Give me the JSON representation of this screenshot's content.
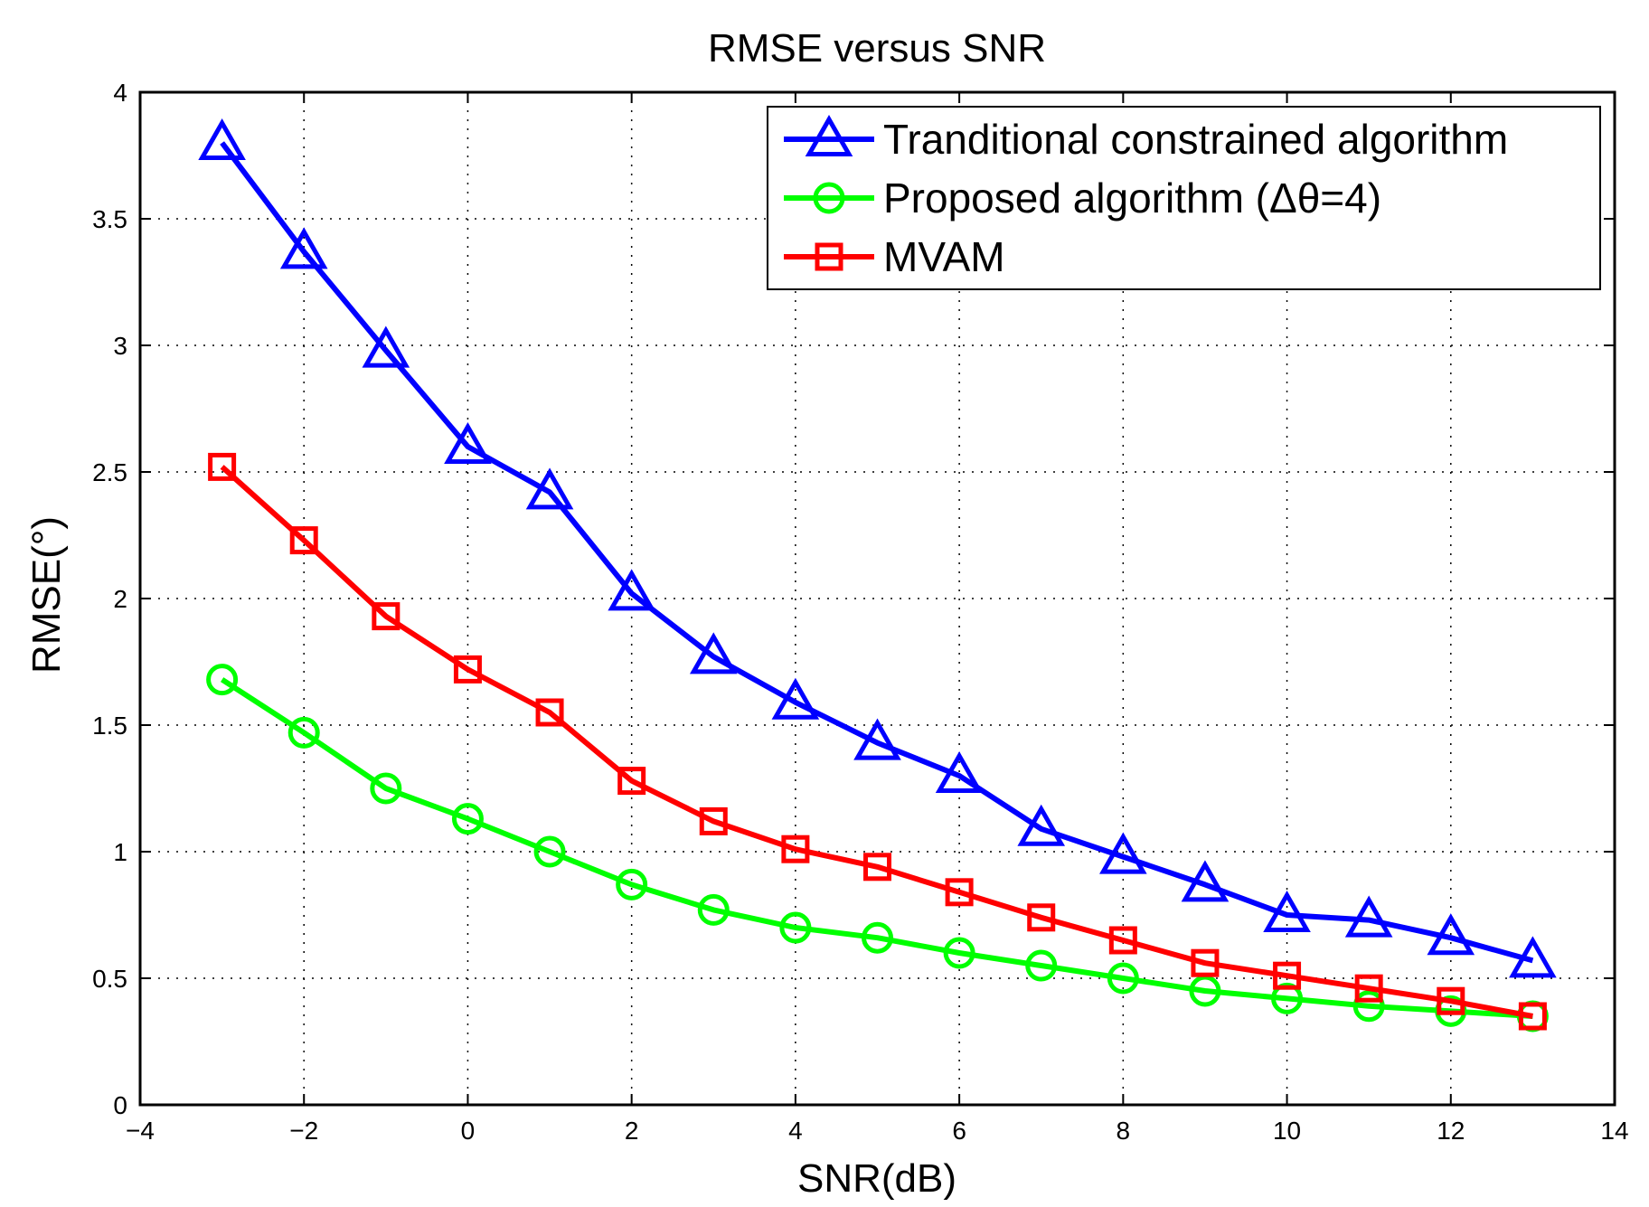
{
  "chart_data": {
    "type": "line",
    "title": "RMSE versus SNR",
    "xlabel": "SNR(dB)",
    "ylabel": "RMSE(°)",
    "xlim": [
      -4,
      14
    ],
    "ylim": [
      0,
      4
    ],
    "xticks": [
      -4,
      -2,
      0,
      2,
      4,
      6,
      8,
      10,
      12,
      14
    ],
    "xtick_labels": [
      "−4",
      "−2",
      "0",
      "2",
      "4",
      "6",
      "8",
      "10",
      "12",
      "14"
    ],
    "yticks": [
      0,
      0.5,
      1,
      1.5,
      2,
      2.5,
      3,
      3.5,
      4
    ],
    "ytick_labels": [
      "0",
      "0.5",
      "1",
      "1.5",
      "2",
      "2.5",
      "3",
      "3.5",
      "4"
    ],
    "grid": true,
    "legend_position": "top-right",
    "x": [
      -3,
      -2,
      -1,
      0,
      1,
      2,
      3,
      4,
      5,
      6,
      7,
      8,
      9,
      10,
      11,
      12,
      13
    ],
    "series": [
      {
        "name": "Tranditional constrained algorithm",
        "color": "#0000ff",
        "marker": "triangle",
        "values": [
          3.8,
          3.37,
          2.98,
          2.6,
          2.42,
          2.02,
          1.77,
          1.59,
          1.43,
          1.3,
          1.09,
          0.98,
          0.87,
          0.75,
          0.73,
          0.66,
          0.57
        ]
      },
      {
        "name": "Proposed algorithm (Δθ=4)",
        "color": "#00ff00",
        "marker": "circle",
        "values": [
          1.68,
          1.47,
          1.25,
          1.13,
          1.0,
          0.87,
          0.77,
          0.7,
          0.66,
          0.6,
          0.55,
          0.5,
          0.45,
          0.42,
          0.39,
          0.37,
          0.35
        ]
      },
      {
        "name": "MVAM",
        "color": "#ff0000",
        "marker": "square",
        "values": [
          2.52,
          2.23,
          1.93,
          1.72,
          1.55,
          1.28,
          1.12,
          1.01,
          0.94,
          0.84,
          0.74,
          0.65,
          0.56,
          0.51,
          0.46,
          0.41,
          0.35
        ]
      }
    ]
  }
}
